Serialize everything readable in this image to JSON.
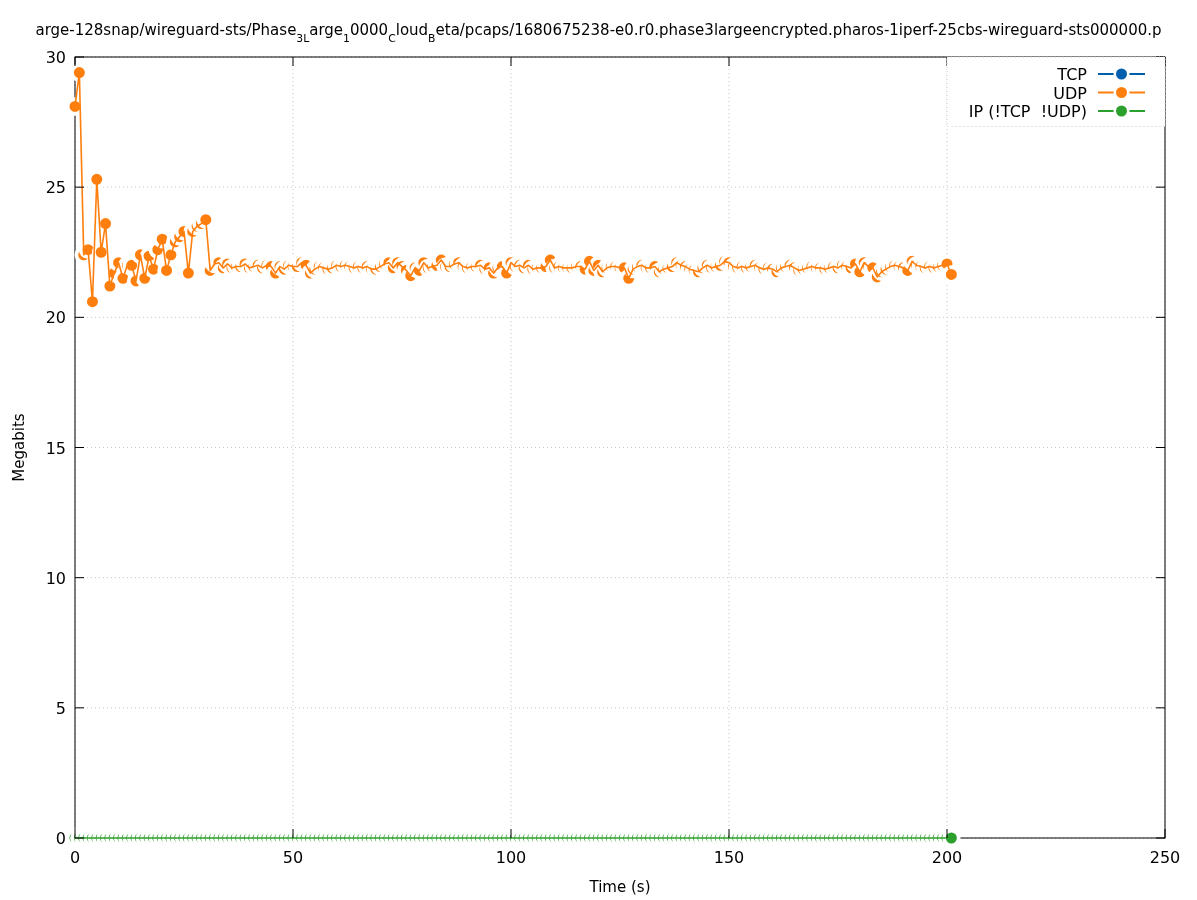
{
  "chart_data": {
    "type": "line",
    "title": "arge-128snap/wireguard-sts/Phase$_{3L}$arge$_{1}$0000$_{C}$loud$_{B}$eta/pcaps/1680675238-e0.r0.phase3largeencrypted.pharos-1iperf-25cbs-wireguard-sts000000.p",
    "xlabel": "Time (s)",
    "ylabel": "Megabits",
    "x": [
      0,
      1,
      2,
      3,
      4,
      5,
      6,
      7,
      8,
      9,
      10,
      11,
      12,
      13,
      14,
      15,
      16,
      17,
      18,
      19,
      20,
      21,
      22,
      23,
      24,
      25,
      26,
      27,
      28,
      29,
      30,
      31,
      32,
      33,
      34,
      35,
      36,
      37,
      38,
      39,
      40,
      41,
      42,
      43,
      44,
      45,
      46,
      47,
      48,
      49,
      50,
      51,
      52,
      53,
      54,
      55,
      56,
      57,
      58,
      59,
      60,
      61,
      62,
      63,
      64,
      65,
      66,
      67,
      68,
      69,
      70,
      71,
      72,
      73,
      74,
      75,
      76,
      77,
      78,
      79,
      80,
      81,
      82,
      83,
      84,
      85,
      86,
      87,
      88,
      89,
      90,
      91,
      92,
      93,
      94,
      95,
      96,
      97,
      98,
      99,
      100,
      101,
      102,
      103,
      104,
      105,
      106,
      107,
      108,
      109,
      110,
      111,
      112,
      113,
      114,
      115,
      116,
      117,
      118,
      119,
      120,
      121,
      122,
      123,
      124,
      125,
      126,
      127,
      128,
      129,
      130,
      131,
      132,
      133,
      134,
      135,
      136,
      137,
      138,
      139,
      140,
      141,
      142,
      143,
      144,
      145,
      146,
      147,
      148,
      149,
      150,
      151,
      152,
      153,
      154,
      155,
      156,
      157,
      158,
      159,
      160,
      161,
      162,
      163,
      164,
      165,
      166,
      167,
      168,
      169,
      170,
      171,
      172,
      173,
      174,
      175,
      176,
      177,
      178,
      179,
      180,
      181,
      182,
      183,
      184,
      185,
      186,
      187,
      188,
      189,
      190,
      191,
      192,
      193,
      194,
      195,
      196,
      197,
      198,
      199,
      200,
      201
    ],
    "series": [
      {
        "name": "TCP",
        "color": "#0060ad",
        "values": [
          null,
          null,
          null,
          null,
          null,
          null,
          null,
          null,
          null,
          null,
          null,
          null,
          null,
          null,
          null,
          null,
          null,
          null,
          null,
          null,
          null,
          null,
          null,
          null,
          null,
          null,
          null,
          null,
          null,
          null,
          null,
          null,
          null,
          null,
          null,
          null,
          null,
          null,
          null,
          null,
          null,
          null,
          null,
          null,
          null,
          null,
          null,
          null,
          null,
          null,
          null,
          null,
          null,
          null,
          null,
          null,
          null,
          null,
          null,
          null,
          null,
          null,
          null,
          null,
          null,
          null,
          null,
          null,
          null,
          null,
          null,
          null,
          null,
          null,
          null,
          null,
          null,
          null,
          null,
          null,
          null,
          null,
          null,
          null,
          null,
          null,
          null,
          null,
          null,
          null,
          null,
          null,
          null,
          null,
          null,
          null,
          null,
          null,
          null,
          null,
          null,
          null,
          null,
          null,
          null,
          null,
          null,
          null,
          null,
          null,
          null,
          null,
          null,
          null,
          null,
          null,
          null,
          null,
          null,
          null,
          null,
          null,
          null,
          null,
          null,
          null,
          null,
          null,
          null,
          null,
          null,
          null,
          null,
          null,
          null,
          null,
          null,
          null,
          null,
          null,
          null,
          null,
          null,
          null,
          null,
          null,
          null,
          null,
          null,
          null,
          null,
          null,
          null,
          null,
          null,
          null,
          null,
          null,
          null,
          null,
          null,
          null,
          null,
          null,
          null,
          null,
          null,
          null,
          null,
          null,
          null,
          null,
          null,
          null,
          null,
          null,
          null,
          null,
          null,
          null,
          null,
          null,
          null,
          null,
          null,
          null,
          null,
          null,
          null,
          null,
          null,
          null,
          null,
          null,
          null,
          null,
          null,
          null,
          null,
          null,
          null,
          null
        ]
      },
      {
        "name": "UDP",
        "color": "#ff7f0e",
        "values": [
          28.1,
          29.4,
          22.4,
          22.6,
          20.6,
          25.3,
          22.5,
          23.6,
          21.2,
          21.7,
          22.1,
          21.5,
          22.0,
          22.0,
          21.4,
          22.4,
          21.5,
          22.35,
          21.85,
          22.6,
          23.0,
          21.8,
          22.4,
          22.9,
          23.1,
          23.3,
          21.7,
          23.3,
          23.5,
          23.6,
          23.75,
          21.8,
          22.05,
          22.1,
          21.9,
          22.05,
          21.9,
          21.95,
          21.95,
          22.05,
          21.9,
          21.95,
          22.0,
          21.9,
          22.0,
          21.95,
          21.7,
          21.95,
          21.85,
          22.0,
          21.95,
          21.95,
          22.1,
          22.0,
          21.7,
          21.85,
          21.95,
          21.9,
          21.85,
          21.9,
          22.0,
          21.95,
          22.0,
          21.95,
          21.9,
          21.95,
          21.9,
          21.95,
          21.85,
          21.85,
          21.95,
          22.05,
          22.1,
          21.9,
          22.1,
          21.95,
          21.8,
          21.6,
          21.9,
          21.8,
          22.1,
          21.9,
          21.95,
          22.0,
          22.2,
          21.95,
          21.95,
          22.05,
          22.1,
          21.95,
          21.9,
          21.95,
          21.95,
          22.0,
          21.85,
          21.9,
          21.7,
          21.9,
          21.95,
          21.7,
          22.1,
          21.95,
          22.0,
          21.9,
          22.0,
          21.85,
          21.9,
          21.9,
          21.95,
          22.2,
          21.9,
          21.95,
          21.9,
          21.9,
          21.9,
          21.95,
          21.95,
          21.85,
          22.15,
          21.8,
          22.0,
          21.75,
          21.9,
          21.95,
          21.95,
          21.9,
          21.9,
          21.5,
          21.85,
          21.95,
          22.0,
          21.9,
          21.9,
          21.95,
          21.75,
          21.85,
          21.9,
          21.95,
          22.1,
          22.0,
          21.95,
          21.85,
          21.8,
          21.75,
          21.9,
          22.0,
          21.9,
          21.95,
          22.0,
          22.15,
          22.1,
          21.95,
          21.9,
          21.95,
          21.9,
          21.95,
          22.0,
          21.9,
          21.85,
          21.9,
          21.85,
          21.75,
          21.9,
          21.95,
          22.0,
          21.9,
          21.8,
          21.85,
          21.9,
          21.95,
          21.9,
          21.9,
          21.85,
          21.9,
          21.95,
          21.9,
          22.0,
          21.95,
          21.9,
          22.05,
          21.75,
          22.1,
          21.95,
          21.9,
          21.55,
          21.75,
          21.85,
          21.95,
          22.0,
          21.95,
          21.9,
          21.8,
          22.15,
          22.0,
          21.95,
          21.9,
          21.95,
          21.9,
          21.95,
          22.0,
          22.05,
          21.65
        ]
      },
      {
        "name": "IP (!TCP  !UDP)",
        "color": "#2ca02c",
        "values": [
          0,
          0,
          0,
          0,
          0,
          0,
          0,
          0,
          0,
          0,
          0,
          0,
          0,
          0,
          0,
          0,
          0,
          0,
          0,
          0,
          0,
          0,
          0,
          0,
          0,
          0,
          0,
          0,
          0,
          0,
          0,
          0,
          0,
          0,
          0,
          0,
          0,
          0,
          0,
          0,
          0,
          0,
          0,
          0,
          0,
          0,
          0,
          0,
          0,
          0,
          0,
          0,
          0,
          0,
          0,
          0,
          0,
          0,
          0,
          0,
          0,
          0,
          0,
          0,
          0,
          0,
          0,
          0,
          0,
          0,
          0,
          0,
          0,
          0,
          0,
          0,
          0,
          0,
          0,
          0,
          0,
          0,
          0,
          0,
          0,
          0,
          0,
          0,
          0,
          0,
          0,
          0,
          0,
          0,
          0,
          0,
          0,
          0,
          0,
          0,
          0,
          0,
          0,
          0,
          0,
          0,
          0,
          0,
          0,
          0,
          0,
          0,
          0,
          0,
          0,
          0,
          0,
          0,
          0,
          0,
          0,
          0,
          0,
          0,
          0,
          0,
          0,
          0,
          0,
          0,
          0,
          0,
          0,
          0,
          0,
          0,
          0,
          0,
          0,
          0,
          0,
          0,
          0,
          0,
          0,
          0,
          0,
          0,
          0,
          0,
          0,
          0,
          0,
          0,
          0,
          0,
          0,
          0,
          0,
          0,
          0,
          0,
          0,
          0,
          0,
          0,
          0,
          0,
          0,
          0,
          0,
          0,
          0,
          0,
          0,
          0,
          0,
          0,
          0,
          0,
          0,
          0,
          0,
          0,
          0,
          0,
          0,
          0,
          0,
          0,
          0,
          0,
          0,
          0,
          0,
          0,
          0,
          0,
          0,
          0,
          0,
          0
        ]
      }
    ],
    "xlim": [
      0,
      250
    ],
    "ylim": [
      0,
      30
    ],
    "xticks": [
      0,
      50,
      100,
      150,
      200,
      250
    ],
    "yticks": [
      0,
      5,
      10,
      15,
      20,
      25,
      30
    ],
    "grid": true,
    "legend": "top right",
    "marker": "circle",
    "line_style": "solid"
  }
}
